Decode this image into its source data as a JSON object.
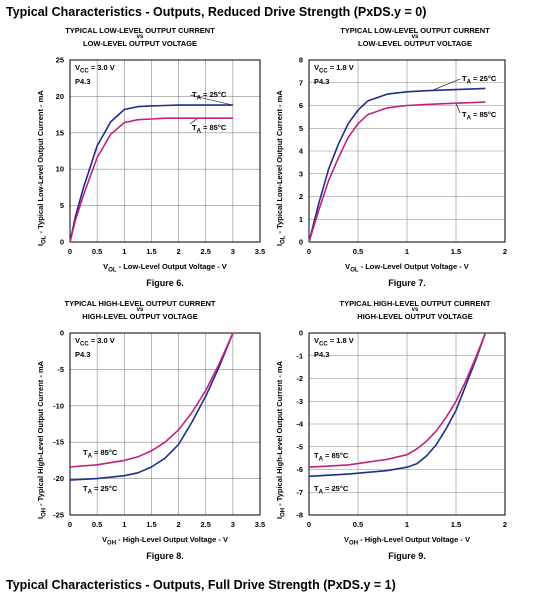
{
  "headings": {
    "top": "Typical Characteristics - Outputs, Reduced Drive Strength (PxDS.y = 0)",
    "bottom": "Typical Characteristics - Outputs, Full Drive Strength (PxDS.y = 1)"
  },
  "chart_data": [
    {
      "type": "line",
      "title_line1": "TYPICAL LOW-LEVEL OUTPUT CURRENT",
      "title_vs": "vs",
      "title_line2": "LOW-LEVEL OUTPUT VOLTAGE",
      "xlabel": "V_OL - Low-Level Output Voltage - V",
      "ylabel": "I_OL - Typical Low-Level Output Current - mA",
      "figure": "Figure 6.",
      "vcc": "V_CC = 3.0 V",
      "port": "P4.3",
      "xlim": [
        0,
        3.5
      ],
      "ylim": [
        0,
        25
      ],
      "xticks": [
        "0",
        "0.5",
        "1",
        "1.5",
        "2",
        "2.5",
        "3",
        "3.5"
      ],
      "yticks": [
        "0",
        "5",
        "10",
        "15",
        "20",
        "25"
      ],
      "grid": true,
      "series": [
        {
          "name": "T_A = 25°C",
          "color": "#1f2e8c",
          "x": [
            0,
            0.1,
            0.25,
            0.5,
            0.75,
            1.0,
            1.25,
            1.5,
            1.75,
            2.0,
            2.5,
            3.0
          ],
          "y": [
            0,
            3.5,
            7.5,
            13.2,
            16.5,
            18.2,
            18.6,
            18.7,
            18.75,
            18.8,
            18.8,
            18.8
          ]
        },
        {
          "name": "T_A = 85°C",
          "color": "#c2227e",
          "x": [
            0,
            0.1,
            0.25,
            0.5,
            0.75,
            1.0,
            1.25,
            1.5,
            1.75,
            2.0,
            2.5,
            3.0
          ],
          "y": [
            0,
            3.0,
            6.5,
            11.6,
            14.8,
            16.4,
            16.8,
            16.9,
            17.0,
            17.0,
            17.0,
            17.0
          ]
        }
      ]
    },
    {
      "type": "line",
      "title_line1": "TYPICAL LOW-LEVEL OUTPUT CURRENT",
      "title_vs": "vs",
      "title_line2": "LOW-LEVEL OUTPUT VOLTAGE",
      "xlabel": "V_OL - Low-Level Output Voltage - V",
      "ylabel": "I_OL - Typical Low-Level Output Current - mA",
      "figure": "Figure 7.",
      "vcc": "V_CC = 1.8 V",
      "port": "P4.3",
      "xlim": [
        0,
        2
      ],
      "ylim": [
        0,
        8
      ],
      "xticks": [
        "0",
        "0.5",
        "1",
        "1.5",
        "2"
      ],
      "yticks": [
        "0",
        "1",
        "2",
        "3",
        "4",
        "5",
        "6",
        "7",
        "8"
      ],
      "grid": true,
      "series": [
        {
          "name": "T_A = 25°C",
          "color": "#1f2e8c",
          "x": [
            0,
            0.1,
            0.2,
            0.3,
            0.4,
            0.5,
            0.6,
            0.8,
            1.0,
            1.2,
            1.5,
            1.8
          ],
          "y": [
            0,
            1.7,
            3.2,
            4.3,
            5.2,
            5.8,
            6.2,
            6.5,
            6.6,
            6.65,
            6.7,
            6.75
          ]
        },
        {
          "name": "T_A = 85°C",
          "color": "#c2227e",
          "x": [
            0,
            0.1,
            0.2,
            0.3,
            0.4,
            0.5,
            0.6,
            0.8,
            1.0,
            1.2,
            1.5,
            1.8
          ],
          "y": [
            0,
            1.4,
            2.7,
            3.7,
            4.6,
            5.2,
            5.6,
            5.9,
            6.0,
            6.05,
            6.1,
            6.15
          ]
        }
      ]
    },
    {
      "type": "line",
      "title_line1": "TYPICAL HIGH-LEVEL OUTPUT CURRENT",
      "title_vs": "vs",
      "title_line2": "HIGH-LEVEL OUTPUT VOLTAGE",
      "xlabel": "V_OH - High-Level Output Voltage - V",
      "ylabel": "I_OH - Typical High-Level Output Current - mA",
      "figure": "Figure 8.",
      "vcc": "V_CC = 3.0 V",
      "port": "P4.3",
      "xlim": [
        0,
        3.5
      ],
      "ylim": [
        -25,
        0
      ],
      "xticks": [
        "0",
        "0.5",
        "1",
        "1.5",
        "2",
        "2.5",
        "3",
        "3.5"
      ],
      "yticks": [
        "-25",
        "-20",
        "-15",
        "-10",
        "-5",
        "0"
      ],
      "grid": true,
      "series": [
        {
          "name": "T_A = 25°C",
          "color": "#1f2e8c",
          "x": [
            0,
            0.5,
            1.0,
            1.25,
            1.5,
            1.75,
            2.0,
            2.25,
            2.5,
            2.75,
            3.0
          ],
          "y": [
            -20.2,
            -20.0,
            -19.6,
            -19.2,
            -18.4,
            -17.2,
            -15.3,
            -12.2,
            -8.7,
            -4.6,
            0
          ]
        },
        {
          "name": "T_A = 85°C",
          "color": "#c2227e",
          "x": [
            0,
            0.5,
            1.0,
            1.25,
            1.5,
            1.75,
            2.0,
            2.25,
            2.5,
            2.75,
            3.0
          ],
          "y": [
            -18.4,
            -18.1,
            -17.5,
            -17.0,
            -16.2,
            -15.0,
            -13.3,
            -10.9,
            -7.9,
            -4.2,
            0
          ]
        }
      ]
    },
    {
      "type": "line",
      "title_line1": "TYPICAL HIGH-LEVEL OUTPUT CURRENT",
      "title_vs": "vs",
      "title_line2": "HIGH-LEVEL OUTPUT VOLTAGE",
      "xlabel": "V_OH - High-Level Output Voltage - V",
      "ylabel": "I_OH - Typical High-Level Output Current - mA",
      "figure": "Figure 9.",
      "vcc": "V_CC = 1.8 V",
      "port": "P4.3",
      "xlim": [
        0,
        2
      ],
      "ylim": [
        -8,
        0
      ],
      "xticks": [
        "0",
        "0.5",
        "1",
        "1.5",
        "2"
      ],
      "yticks": [
        "-8",
        "-7",
        "-6",
        "-5",
        "-4",
        "-3",
        "-2",
        "-1",
        "0"
      ],
      "grid": true,
      "series": [
        {
          "name": "T_A = 25°C",
          "color": "#1f2e8c",
          "x": [
            0,
            0.4,
            0.8,
            1.0,
            1.1,
            1.2,
            1.3,
            1.4,
            1.5,
            1.6,
            1.7,
            1.8
          ],
          "y": [
            -6.3,
            -6.2,
            -6.05,
            -5.9,
            -5.75,
            -5.4,
            -4.9,
            -4.2,
            -3.4,
            -2.3,
            -1.2,
            0
          ]
        },
        {
          "name": "T_A = 85°C",
          "color": "#c2227e",
          "x": [
            0,
            0.4,
            0.8,
            1.0,
            1.1,
            1.2,
            1.3,
            1.4,
            1.5,
            1.6,
            1.7,
            1.8
          ],
          "y": [
            -5.9,
            -5.8,
            -5.55,
            -5.35,
            -5.1,
            -4.75,
            -4.3,
            -3.7,
            -3.0,
            -2.1,
            -1.1,
            0
          ]
        }
      ]
    }
  ]
}
